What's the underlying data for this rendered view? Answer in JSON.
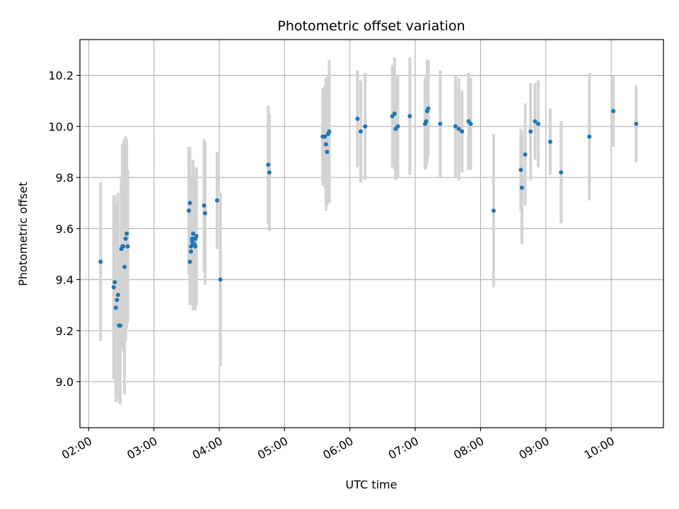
{
  "chart_data": {
    "type": "scatter",
    "title": "Photometric offset variation",
    "xlabel": "UTC time",
    "ylabel": "Photometric offset",
    "grid": true,
    "xlim": [
      "01:52",
      "10:48"
    ],
    "ylim": [
      8.82,
      10.34
    ],
    "xticks": [
      "02:00",
      "03:00",
      "04:00",
      "05:00",
      "06:00",
      "07:00",
      "08:00",
      "09:00",
      "10:00"
    ],
    "yticks": [
      9.0,
      9.2,
      9.4,
      9.6,
      9.8,
      10.0,
      10.2
    ],
    "colors": {
      "point": "#1f77b4",
      "errorbar": "#d3d3d3",
      "grid": "#b0b0b0"
    },
    "series": [
      {
        "x": [
          "02:11",
          "02:23",
          "02:24",
          "02:25",
          "02:26",
          "02:27",
          "02:28",
          "02:29",
          "02:30",
          "02:31",
          "02:32",
          "02:33",
          "02:34",
          "02:35",
          "02:36",
          "03:32",
          "03:33",
          "03:33",
          "03:34",
          "03:34",
          "03:35",
          "03:35",
          "03:36",
          "03:36",
          "03:37",
          "03:37",
          "03:38",
          "03:38",
          "03:39",
          "03:46",
          "03:47",
          "03:58",
          "04:01",
          "04:45",
          "04:46",
          "05:35",
          "05:37",
          "05:38",
          "05:39",
          "05:40",
          "05:41",
          "06:07",
          "06:10",
          "06:14",
          "06:39",
          "06:41",
          "06:42",
          "06:44",
          "06:55",
          "07:09",
          "07:10",
          "07:11",
          "07:12",
          "07:23",
          "07:37",
          "07:40",
          "07:43",
          "07:49",
          "07:51",
          "08:12",
          "08:37",
          "08:38",
          "08:41",
          "08:46",
          "08:50",
          "08:53",
          "09:04",
          "09:14",
          "09:40",
          "10:02",
          "10:23"
        ],
        "y": [
          9.47,
          9.37,
          9.39,
          9.29,
          9.32,
          9.34,
          9.22,
          9.22,
          9.52,
          9.53,
          9.53,
          9.45,
          9.56,
          9.58,
          9.53,
          9.67,
          9.7,
          9.47,
          9.51,
          9.53,
          9.56,
          9.55,
          9.54,
          9.58,
          9.56,
          9.54,
          9.53,
          9.56,
          9.57,
          9.69,
          9.66,
          9.71,
          9.4,
          9.85,
          9.82,
          9.96,
          9.96,
          9.93,
          9.9,
          9.97,
          9.98,
          10.03,
          9.98,
          10.0,
          10.04,
          10.05,
          9.99,
          10.0,
          10.04,
          10.01,
          10.02,
          10.06,
          10.07,
          10.01,
          10.0,
          9.99,
          9.98,
          10.02,
          10.01,
          9.67,
          9.83,
          9.76,
          9.89,
          9.98,
          10.02,
          10.01,
          9.94,
          9.82,
          9.96,
          10.06,
          10.01
        ],
        "yerr": [
          0.31,
          0.36,
          0.34,
          0.37,
          0.38,
          0.4,
          0.3,
          0.31,
          0.28,
          0.4,
          0.41,
          0.5,
          0.4,
          0.37,
          0.3,
          0.25,
          0.22,
          0.17,
          0.21,
          0.22,
          0.25,
          0.24,
          0.26,
          0.29,
          0.25,
          0.25,
          0.25,
          0.27,
          0.27,
          0.26,
          0.28,
          0.19,
          0.34,
          0.23,
          0.23,
          0.19,
          0.2,
          0.26,
          0.21,
          0.23,
          0.28,
          0.19,
          0.2,
          0.21,
          0.2,
          0.22,
          0.2,
          0.2,
          0.23,
          0.18,
          0.18,
          0.2,
          0.19,
          0.21,
          0.2,
          0.2,
          0.16,
          0.19,
          0.18,
          0.3,
          0.16,
          0.22,
          0.2,
          0.19,
          0.15,
          0.17,
          0.13,
          0.2,
          0.25,
          0.14,
          0.15
        ]
      }
    ]
  }
}
